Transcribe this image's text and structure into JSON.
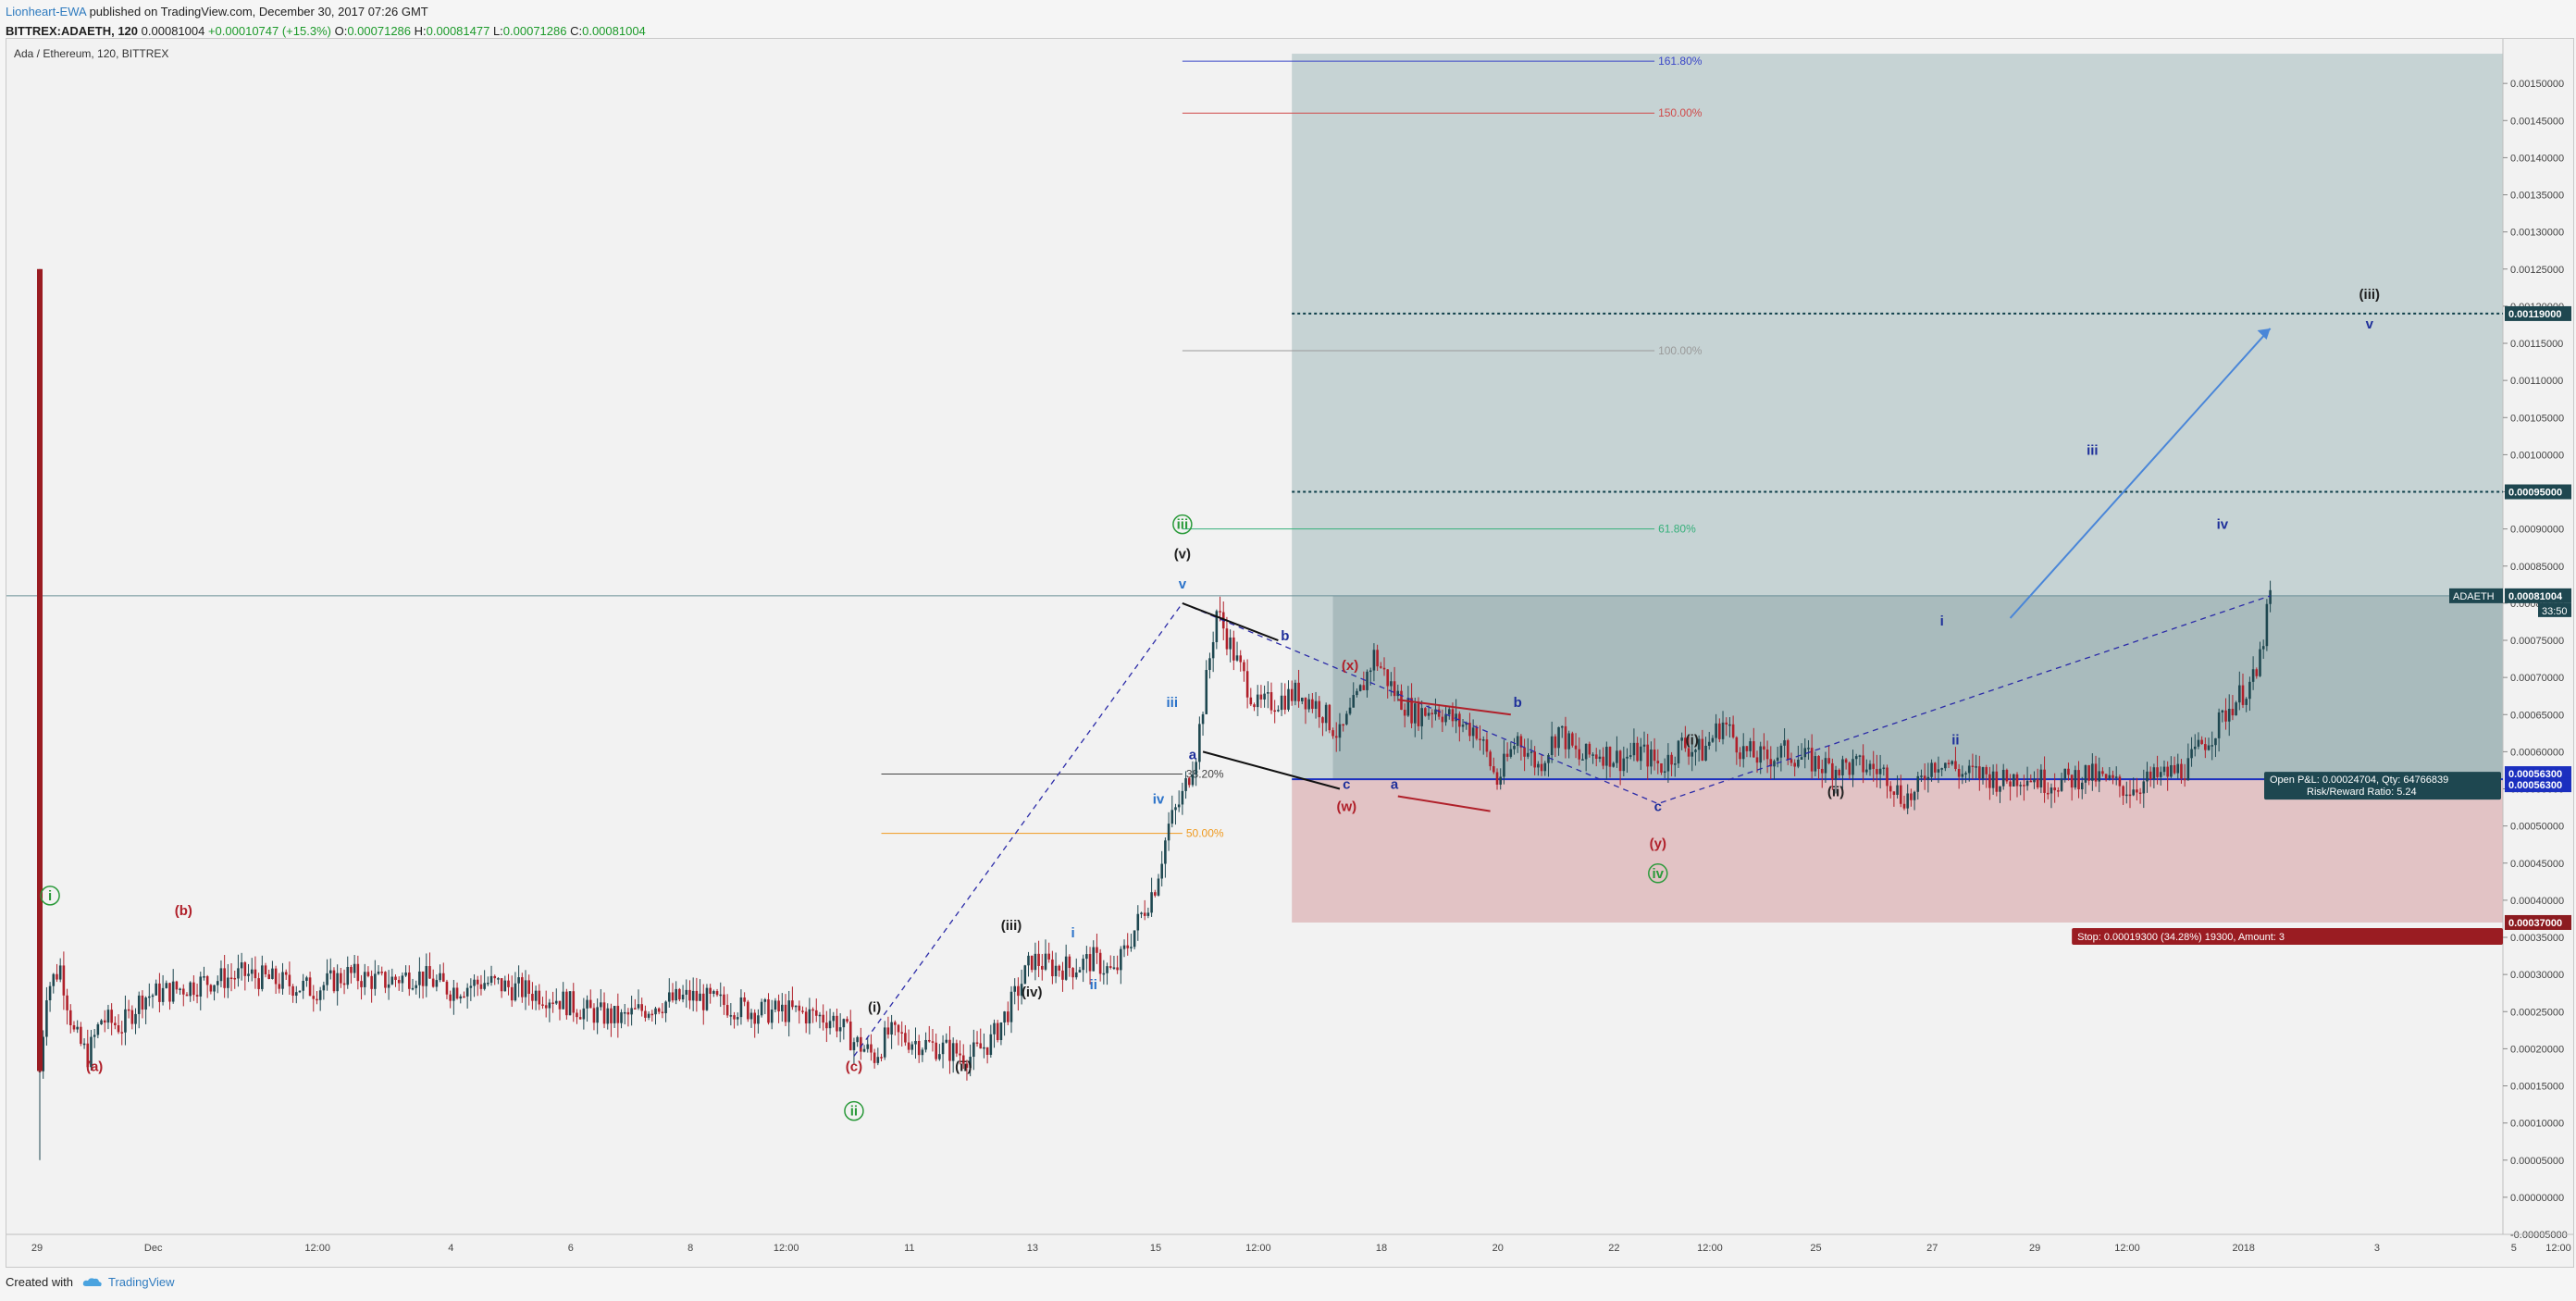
{
  "header": {
    "author": "Lionheart-EWA",
    "published": "published on TradingView.com, December 30, 2017 07:26 GMT",
    "symbol": "BITTREX:ADAETH, 120",
    "last": "0.00081004",
    "change": "+0.00010747 (+15.3%)",
    "open_label": "O:",
    "open": "0.00071286",
    "high_label": "H:",
    "high": "0.00081477",
    "low_label": "L:",
    "low": "0.00071286",
    "close_label": "C:",
    "close": "0.00081004"
  },
  "footer": {
    "created_with": "Created with",
    "brand": "TradingView"
  },
  "chart_data": {
    "type": "candlestick",
    "title": "Ada / Ethereum, 120, BITTREX",
    "ylim": [
      -5e-05,
      0.00156
    ],
    "y_ticks": [
      "0.00150000",
      "0.00145000",
      "0.00140000",
      "0.00135000",
      "0.00130000",
      "0.00125000",
      "0.00120000",
      "0.00115000",
      "0.00110000",
      "0.00105000",
      "0.00100000",
      "0.00095000",
      "0.00090000",
      "0.00085000",
      "0.00080000",
      "0.00075000",
      "0.00070000",
      "0.00065000",
      "0.00060000",
      "0.00055000",
      "0.00050000",
      "0.00045000",
      "0.00040000",
      "0.00035000",
      "0.00030000",
      "0.00025000",
      "0.00020000",
      "0.00015000",
      "0.00010000",
      "0.00005000",
      "0.00000000",
      "-0.00005000"
    ],
    "x_ticks": [
      "29",
      "Dec",
      "12:00",
      "4",
      "6",
      "8",
      "12:00",
      "11",
      "13",
      "15",
      "12:00",
      "18",
      "20",
      "22",
      "12:00",
      "25",
      "27",
      "29",
      "12:00",
      "2018",
      "3",
      "5",
      "12:00"
    ],
    "price_path": [
      [
        0,
        0.00017
      ],
      [
        2,
        0.00028
      ],
      [
        6,
        0.00031
      ],
      [
        10,
        0.00022
      ],
      [
        14,
        0.00019
      ],
      [
        18,
        0.00024
      ],
      [
        24,
        0.00023
      ],
      [
        30,
        0.00027
      ],
      [
        40,
        0.00028
      ],
      [
        48,
        0.00029
      ],
      [
        60,
        0.0003
      ],
      [
        70,
        0.00029
      ],
      [
        80,
        0.00028
      ],
      [
        90,
        0.0003
      ],
      [
        100,
        0.00029
      ],
      [
        110,
        0.0003
      ],
      [
        120,
        0.00028
      ],
      [
        130,
        0.00029
      ],
      [
        140,
        0.00028
      ],
      [
        150,
        0.00027
      ],
      [
        160,
        0.00025
      ],
      [
        170,
        0.00024
      ],
      [
        180,
        0.00026
      ],
      [
        190,
        0.00027
      ],
      [
        200,
        0.00026
      ],
      [
        210,
        0.00025
      ],
      [
        220,
        0.00025
      ],
      [
        232,
        0.00024
      ],
      [
        238,
        0.00021
      ],
      [
        244,
        0.00019
      ],
      [
        248,
        0.00022
      ],
      [
        256,
        0.00021
      ],
      [
        264,
        0.0002
      ],
      [
        272,
        0.00019
      ],
      [
        278,
        0.00021
      ],
      [
        284,
        0.00026
      ],
      [
        290,
        0.00032
      ],
      [
        296,
        0.00031
      ],
      [
        302,
        0.00031
      ],
      [
        308,
        0.00032
      ],
      [
        314,
        0.0003
      ],
      [
        320,
        0.00036
      ],
      [
        326,
        0.00042
      ],
      [
        330,
        0.0005
      ],
      [
        334,
        0.00054
      ],
      [
        338,
        0.0006
      ],
      [
        344,
        0.00079
      ],
      [
        350,
        0.00072
      ],
      [
        356,
        0.00066
      ],
      [
        362,
        0.00067
      ],
      [
        368,
        0.00068
      ],
      [
        374,
        0.00066
      ],
      [
        380,
        0.00062
      ],
      [
        386,
        0.00068
      ],
      [
        390,
        0.00073
      ],
      [
        396,
        0.00068
      ],
      [
        402,
        0.00065
      ],
      [
        408,
        0.00066
      ],
      [
        414,
        0.00064
      ],
      [
        420,
        0.00063
      ],
      [
        426,
        0.00056
      ],
      [
        432,
        0.00062
      ],
      [
        438,
        0.00058
      ],
      [
        444,
        0.00063
      ],
      [
        450,
        0.00059
      ],
      [
        456,
        0.0006
      ],
      [
        462,
        0.00059
      ],
      [
        468,
        0.0006
      ],
      [
        474,
        0.00058
      ],
      [
        480,
        0.00061
      ],
      [
        486,
        0.0006
      ],
      [
        492,
        0.00064
      ],
      [
        498,
        0.0006
      ],
      [
        504,
        0.00059
      ],
      [
        510,
        0.0006
      ],
      [
        516,
        0.00059
      ],
      [
        522,
        0.00058
      ],
      [
        528,
        0.00058
      ],
      [
        534,
        0.00058
      ],
      [
        540,
        0.00057
      ],
      [
        544,
        0.00054
      ],
      [
        548,
        0.00054
      ],
      [
        552,
        0.00058
      ],
      [
        556,
        0.00059
      ],
      [
        562,
        0.00057
      ],
      [
        568,
        0.00057
      ],
      [
        574,
        0.00056
      ],
      [
        580,
        0.00057
      ],
      [
        586,
        0.00056
      ],
      [
        592,
        0.00056
      ],
      [
        598,
        0.00057
      ],
      [
        604,
        0.00056
      ],
      [
        610,
        0.00055
      ],
      [
        616,
        0.00056
      ],
      [
        622,
        0.00057
      ],
      [
        628,
        0.00058
      ],
      [
        632,
        0.00061
      ],
      [
        636,
        0.00063
      ],
      [
        640,
        0.00066
      ],
      [
        644,
        0.00068
      ],
      [
        648,
        0.0007
      ],
      [
        652,
        0.00081
      ]
    ],
    "spike": {
      "bar": 0,
      "high": 0.00125,
      "low": 5e-05
    },
    "fib_levels": [
      {
        "label": "161.80%",
        "value": 0.00153,
        "color": "#3a46c8"
      },
      {
        "label": "150.00%",
        "value": 0.00146,
        "color": "#d04a4a"
      },
      {
        "label": "100.00%",
        "value": 0.00114,
        "color": "#9a9a9a"
      },
      {
        "label": "61.80%",
        "value": 0.0009,
        "color": "#37b07b"
      },
      {
        "label": "50.00%",
        "value": 0.00049,
        "color": "#ef9a1f"
      },
      {
        "label": "38.20%",
        "value": 0.00057,
        "color": "#444444"
      }
    ],
    "position": {
      "entry": "0.00056300",
      "target_1": "0.00095000",
      "target_2": "0.00119000",
      "stop": "0.00037000",
      "last_label": "ADAETH",
      "last_price": "0.00081004",
      "countdown": "33:50",
      "open_pl": "Open P&L: 0.00024704, Qty: 64766839",
      "rr": "Risk/Reward Ratio: 5.24",
      "stop_box": "Stop: 0.00019300 (34.28%) 19300, Amount: 3"
    },
    "wave_labels": [
      {
        "t": "i",
        "x": 3,
        "y": 0.0004,
        "c": "#2a9a3a",
        "circle": true
      },
      {
        "t": "(a)",
        "x": 16,
        "y": 0.00017,
        "c": "#b0202a"
      },
      {
        "t": "(b)",
        "x": 42,
        "y": 0.00038,
        "c": "#b0202a"
      },
      {
        "t": "(c)",
        "x": 238,
        "y": 0.00017,
        "c": "#b0202a"
      },
      {
        "t": "ii",
        "x": 238,
        "y": 0.00011,
        "c": "#2a9a3a",
        "circle": true
      },
      {
        "t": "(i)",
        "x": 244,
        "y": 0.00025,
        "c": "#222"
      },
      {
        "t": "(ii)",
        "x": 270,
        "y": 0.00017,
        "c": "#222"
      },
      {
        "t": "(iii)",
        "x": 284,
        "y": 0.00036,
        "c": "#222"
      },
      {
        "t": "(iv)",
        "x": 290,
        "y": 0.00027,
        "c": "#222"
      },
      {
        "t": "i",
        "x": 302,
        "y": 0.00035,
        "c": "#2a72c9"
      },
      {
        "t": "ii",
        "x": 308,
        "y": 0.00028,
        "c": "#2a72c9"
      },
      {
        "t": "iii",
        "x": 331,
        "y": 0.00066,
        "c": "#2a72c9"
      },
      {
        "t": "iv",
        "x": 327,
        "y": 0.00053,
        "c": "#2a72c9"
      },
      {
        "t": "a",
        "x": 337,
        "y": 0.00059,
        "c": "#1e2f9a"
      },
      {
        "t": "iii",
        "x": 334,
        "y": 0.0009,
        "c": "#2a9a3a",
        "circle": true
      },
      {
        "t": "(v)",
        "x": 334,
        "y0": true,
        "y": 0.00086,
        "c": "#222"
      },
      {
        "t": "v",
        "x": 334,
        "y": 0.00082,
        "c": "#2a72c9"
      },
      {
        "t": "b",
        "x": 364,
        "y": 0.00075,
        "c": "#1e2f9a"
      },
      {
        "t": "(x)",
        "x": 383,
        "y": 0.00071,
        "c": "#b0202a"
      },
      {
        "t": "c",
        "x": 382,
        "y": 0.00055,
        "c": "#1e2f9a"
      },
      {
        "t": "(w)",
        "x": 382,
        "y": 0.00052,
        "c": "#b0202a"
      },
      {
        "t": "a",
        "x": 396,
        "y": 0.00055,
        "c": "#1e2f9a"
      },
      {
        "t": "b",
        "x": 432,
        "y": 0.00066,
        "c": "#1e2f9a"
      },
      {
        "t": "c",
        "x": 473,
        "y": 0.00052,
        "c": "#1e2f9a"
      },
      {
        "t": "(y)",
        "x": 473,
        "y": 0.00047,
        "c": "#b0202a"
      },
      {
        "t": "iv",
        "x": 473,
        "y": 0.00043,
        "c": "#2a9a3a",
        "circle": true
      },
      {
        "t": "(i)",
        "x": 483,
        "y": 0.00061,
        "c": "#222"
      },
      {
        "t": "(ii)",
        "x": 525,
        "y": 0.00054,
        "c": "#222"
      },
      {
        "t": "i",
        "x": 556,
        "y": 0.00077,
        "c": "#1e2f9a"
      },
      {
        "t": "ii",
        "x": 560,
        "y": 0.00061,
        "c": "#1e2f9a"
      },
      {
        "t": "iii",
        "x": 600,
        "y": 0.001,
        "c": "#1e2f9a"
      },
      {
        "t": "iv",
        "x": 638,
        "y": 0.0009,
        "c": "#1e2f9a"
      },
      {
        "t": "(iii)",
        "x": 681,
        "y": 0.00121,
        "c": "#222"
      },
      {
        "t": "v",
        "x": 681,
        "y": 0.00117,
        "c": "#1e2f9a"
      }
    ]
  }
}
